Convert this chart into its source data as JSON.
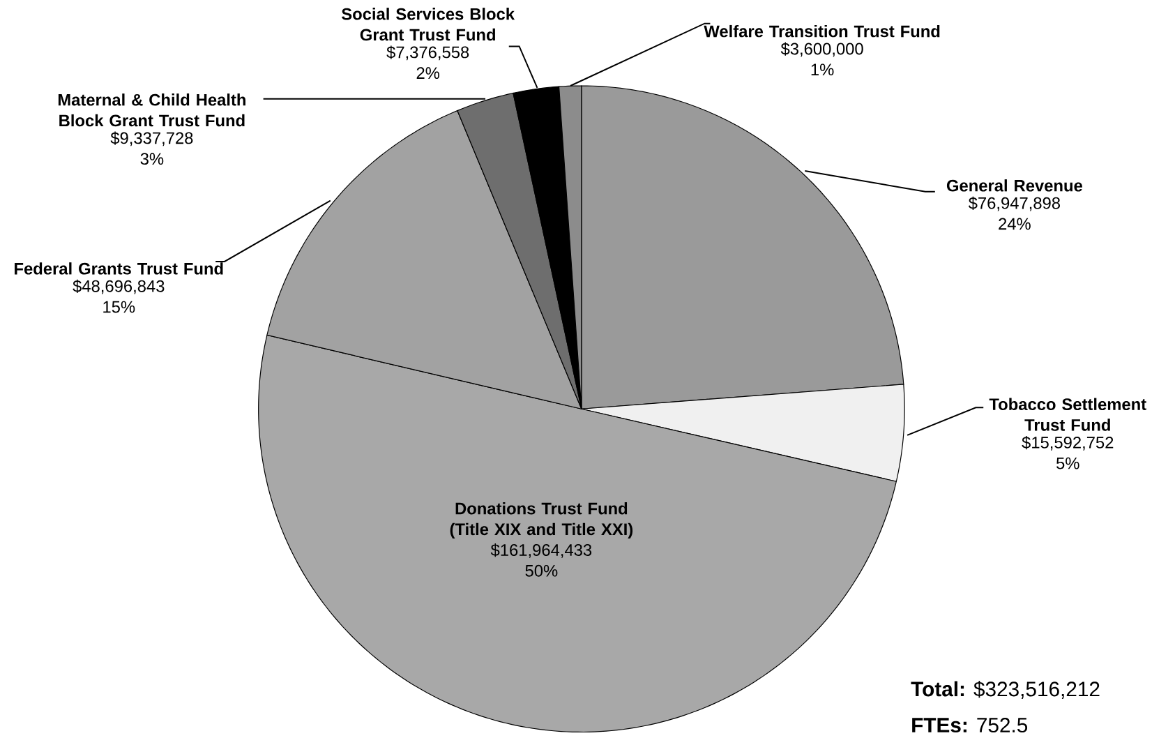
{
  "chart_data": {
    "type": "pie",
    "categories": [
      "General Revenue",
      "Tobacco Settlement Trust Fund",
      "Donations Trust Fund (Title XIX and Title XXI)",
      "Federal Grants Trust Fund",
      "Maternal & Child Health Block Grant Trust Fund",
      "Social Services Block Grant Trust Fund",
      "Welfare Transition Trust Fund"
    ],
    "values": [
      76947898,
      15592752,
      161964433,
      48696843,
      9337728,
      7376558,
      3600000
    ],
    "colors": [
      "#9a9a9a",
      "#f0f0f0",
      "#a8a8a8",
      "#a2a2a2",
      "#6e6e6e",
      "#000000",
      "#8c8c8c"
    ],
    "value_labels": [
      "$76,947,898 24%",
      "$15,592,752 5%",
      "$161,964,433 50%",
      "$48,696,843 15%",
      "$9,337,728 3%",
      "$7,376,558 2%",
      "$3,600,000 1%"
    ],
    "annotations": [
      "**Total:** $323,516,212",
      "**FTEs:** 752.5"
    ]
  }
}
